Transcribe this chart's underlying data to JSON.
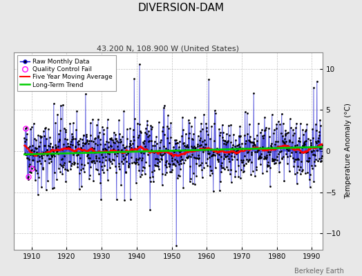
{
  "title": "DIVERSION-DAM",
  "subtitle": "43.200 N, 108.900 W (United States)",
  "ylabel": "Temperature Anomaly (°C)",
  "xlabel_bottom": "Berkeley Earth",
  "ylim": [
    -12,
    12
  ],
  "yticks": [
    -10,
    -5,
    0,
    5,
    10
  ],
  "xlim": [
    1905,
    1993
  ],
  "xticks": [
    1910,
    1920,
    1930,
    1940,
    1950,
    1960,
    1970,
    1980,
    1990
  ],
  "line_color": "#0000cc",
  "dot_color": "#000000",
  "qc_color": "#ff00ff",
  "ma_color": "#ff0000",
  "trend_color": "#00cc00",
  "bg_color": "#e8e8e8",
  "plot_bg_color": "#ffffff",
  "grid_color": "#b0b0b0",
  "seed": 42,
  "years_start": 1908,
  "years_end": 1992
}
